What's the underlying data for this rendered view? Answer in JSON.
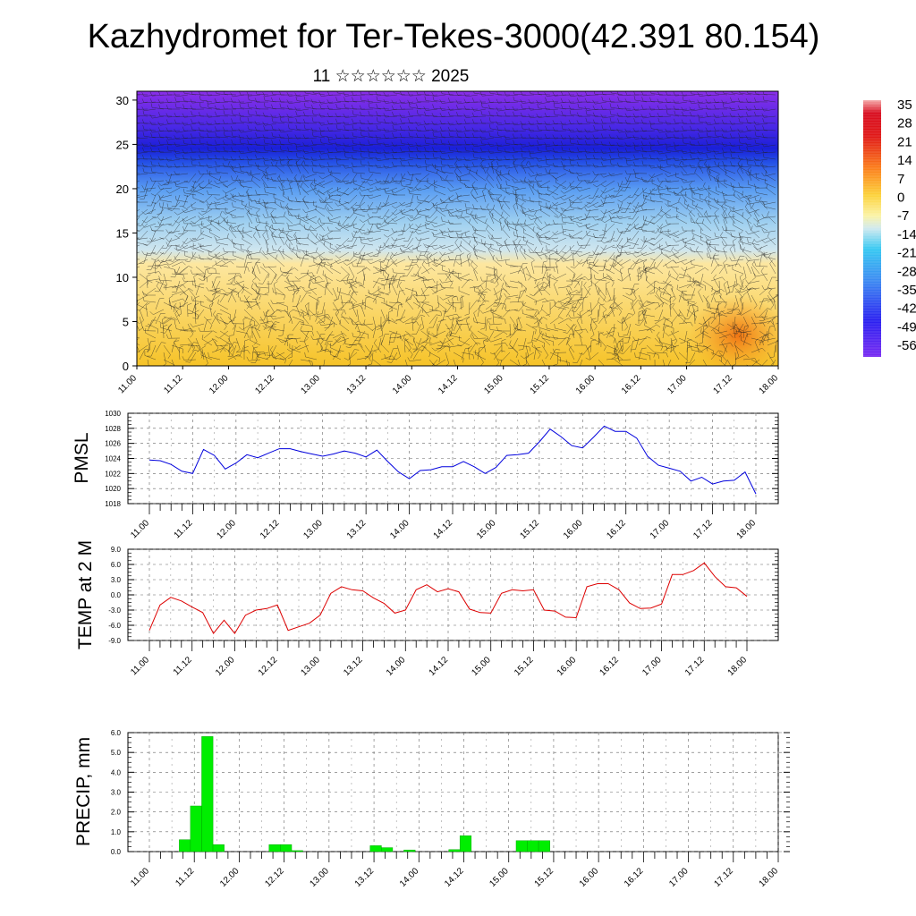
{
  "title": "Kazhydromet for Ter-Tekes-3000(42.391 80.154)",
  "subtitle": "11 ☆☆☆☆☆☆ 2025",
  "colors": {
    "pmsl_line": "#0000dd",
    "temp_line": "#dd0000",
    "precip_bar": "#00ee00",
    "precip_edge": "#00aa00"
  },
  "time_ticks": [
    "11.00",
    "11.12",
    "12.00",
    "12.12",
    "13.00",
    "13.12",
    "14.00",
    "14.12",
    "15.00",
    "15.12",
    "16.00",
    "16.12",
    "17.00",
    "17.12",
    "18.00"
  ],
  "chart_data": [
    {
      "type": "heatmap",
      "name": "wind-temperature-cross-section",
      "x": [
        "11.00",
        "11.12",
        "12.00",
        "12.12",
        "13.00",
        "13.12",
        "14.00",
        "14.12",
        "15.00",
        "15.12",
        "16.00",
        "16.12",
        "17.00",
        "17.12",
        "18.00"
      ],
      "ylim": [
        0,
        31
      ],
      "yticks": [
        "0",
        "5",
        "10",
        "15",
        "20",
        "25",
        "30"
      ],
      "colorbar": [
        "35",
        "28",
        "21",
        "14",
        "7",
        "0",
        "-7",
        "-14",
        "-21",
        "-28",
        "-35",
        "-42",
        "-49",
        "-56"
      ],
      "freezing_level": [
        12.0,
        11.8,
        10.8,
        10.5,
        11.5,
        11.8,
        11.8,
        12.2,
        12.5,
        12.5,
        12.5,
        13.0,
        14.3,
        14.5,
        15.0
      ],
      "tropopause_level": [
        23.8,
        24.0,
        24.5,
        24.8,
        25.2,
        25.0,
        24.8,
        24.8,
        24.8,
        24.5,
        24.0,
        24.2,
        24.5,
        24.8,
        24.8
      ],
      "warm_core": {
        "x": "17.12",
        "level": 3.0,
        "value": 14
      }
    },
    {
      "type": "line",
      "name": "PMSL",
      "ylabel": "PMSL",
      "ylim": [
        1018,
        1030
      ],
      "yticks": [
        "1018",
        "1020",
        "1022",
        "1024",
        "1026",
        "1028",
        "1030"
      ],
      "x_index": [
        0,
        1,
        2,
        3,
        4,
        5,
        6,
        7,
        8,
        9,
        10,
        11,
        12,
        13,
        14,
        15,
        16,
        17,
        18,
        19,
        20,
        21,
        22,
        23,
        24,
        25,
        26,
        27,
        28,
        29,
        30,
        31,
        32,
        33,
        34,
        35,
        36,
        37,
        38,
        39,
        40,
        41,
        42,
        43,
        44,
        45,
        46,
        47,
        48,
        49,
        50,
        51,
        52,
        53,
        54,
        55,
        56
      ],
      "values": [
        1023.8,
        1023.7,
        1023.2,
        1022.3,
        1022.0,
        1025.2,
        1024.4,
        1022.6,
        1023.4,
        1024.5,
        1024.1,
        1024.7,
        1025.3,
        1025.3,
        1024.9,
        1024.6,
        1024.3,
        1024.6,
        1025.0,
        1024.7,
        1024.2,
        1025.1,
        1023.6,
        1022.2,
        1021.3,
        1022.4,
        1022.5,
        1022.9,
        1022.9,
        1023.6,
        1022.9,
        1022.0,
        1022.8,
        1024.4,
        1024.5,
        1024.7,
        1026.2,
        1027.9,
        1026.9,
        1025.7,
        1025.4,
        1026.8,
        1028.3,
        1027.6,
        1027.6,
        1026.7,
        1024.3,
        1023.1,
        1022.7,
        1022.3,
        1021.0,
        1021.5,
        1020.6,
        1021.0,
        1021.1,
        1022.2,
        1019.3
      ]
    },
    {
      "type": "line",
      "name": "TEMP at 2 M",
      "ylabel": "TEMP at 2 M",
      "ylim": [
        -9.0,
        9.0
      ],
      "yticks": [
        "-9.0",
        "-6.0",
        "-3.0",
        "0.0",
        "3.0",
        "6.0",
        "9.0"
      ],
      "x_index": [
        0,
        1,
        2,
        3,
        4,
        5,
        6,
        7,
        8,
        9,
        10,
        11,
        12,
        13,
        14,
        15,
        16,
        17,
        18,
        19,
        20,
        21,
        22,
        23,
        24,
        25,
        26,
        27,
        28,
        29,
        30,
        31,
        32,
        33,
        34,
        35,
        36,
        37,
        38,
        39,
        40,
        41,
        42,
        43,
        44,
        45,
        46,
        47,
        48,
        49,
        50,
        51,
        52,
        53,
        54,
        55,
        56
      ],
      "values": [
        -7.0,
        -2.0,
        -0.5,
        -1.2,
        -2.4,
        -3.5,
        -7.6,
        -5.0,
        -7.6,
        -4.0,
        -3.0,
        -2.7,
        -2.0,
        -7.0,
        -6.3,
        -5.6,
        -4.0,
        0.3,
        1.6,
        1.0,
        0.8,
        -0.6,
        -1.7,
        -3.6,
        -3.0,
        1.0,
        2.0,
        0.6,
        1.2,
        0.6,
        -2.8,
        -3.5,
        -3.6,
        0.3,
        1.0,
        0.8,
        1.0,
        -3.0,
        -3.2,
        -4.4,
        -4.5,
        1.6,
        2.2,
        2.2,
        1.0,
        -1.6,
        -2.7,
        -2.6,
        -1.8,
        4.0,
        4.0,
        4.8,
        6.3,
        3.6,
        1.6,
        1.4,
        -0.3
      ]
    },
    {
      "type": "bar",
      "name": "PRECIP, mm",
      "ylabel": "PRECIP, mm",
      "ylim": [
        0,
        6.0
      ],
      "yticks": [
        "0.0",
        "1.0",
        "2.0",
        "3.0",
        "4.0",
        "5.0",
        "6.0"
      ],
      "x_index": [
        3,
        4,
        5,
        6,
        11,
        12,
        13,
        20,
        21,
        23,
        27,
        28,
        33,
        34,
        35
      ],
      "values": [
        0.6,
        2.3,
        5.8,
        0.35,
        0.35,
        0.35,
        0.05,
        0.3,
        0.2,
        0.08,
        0.1,
        0.8,
        0.55,
        0.55,
        0.55
      ]
    }
  ]
}
